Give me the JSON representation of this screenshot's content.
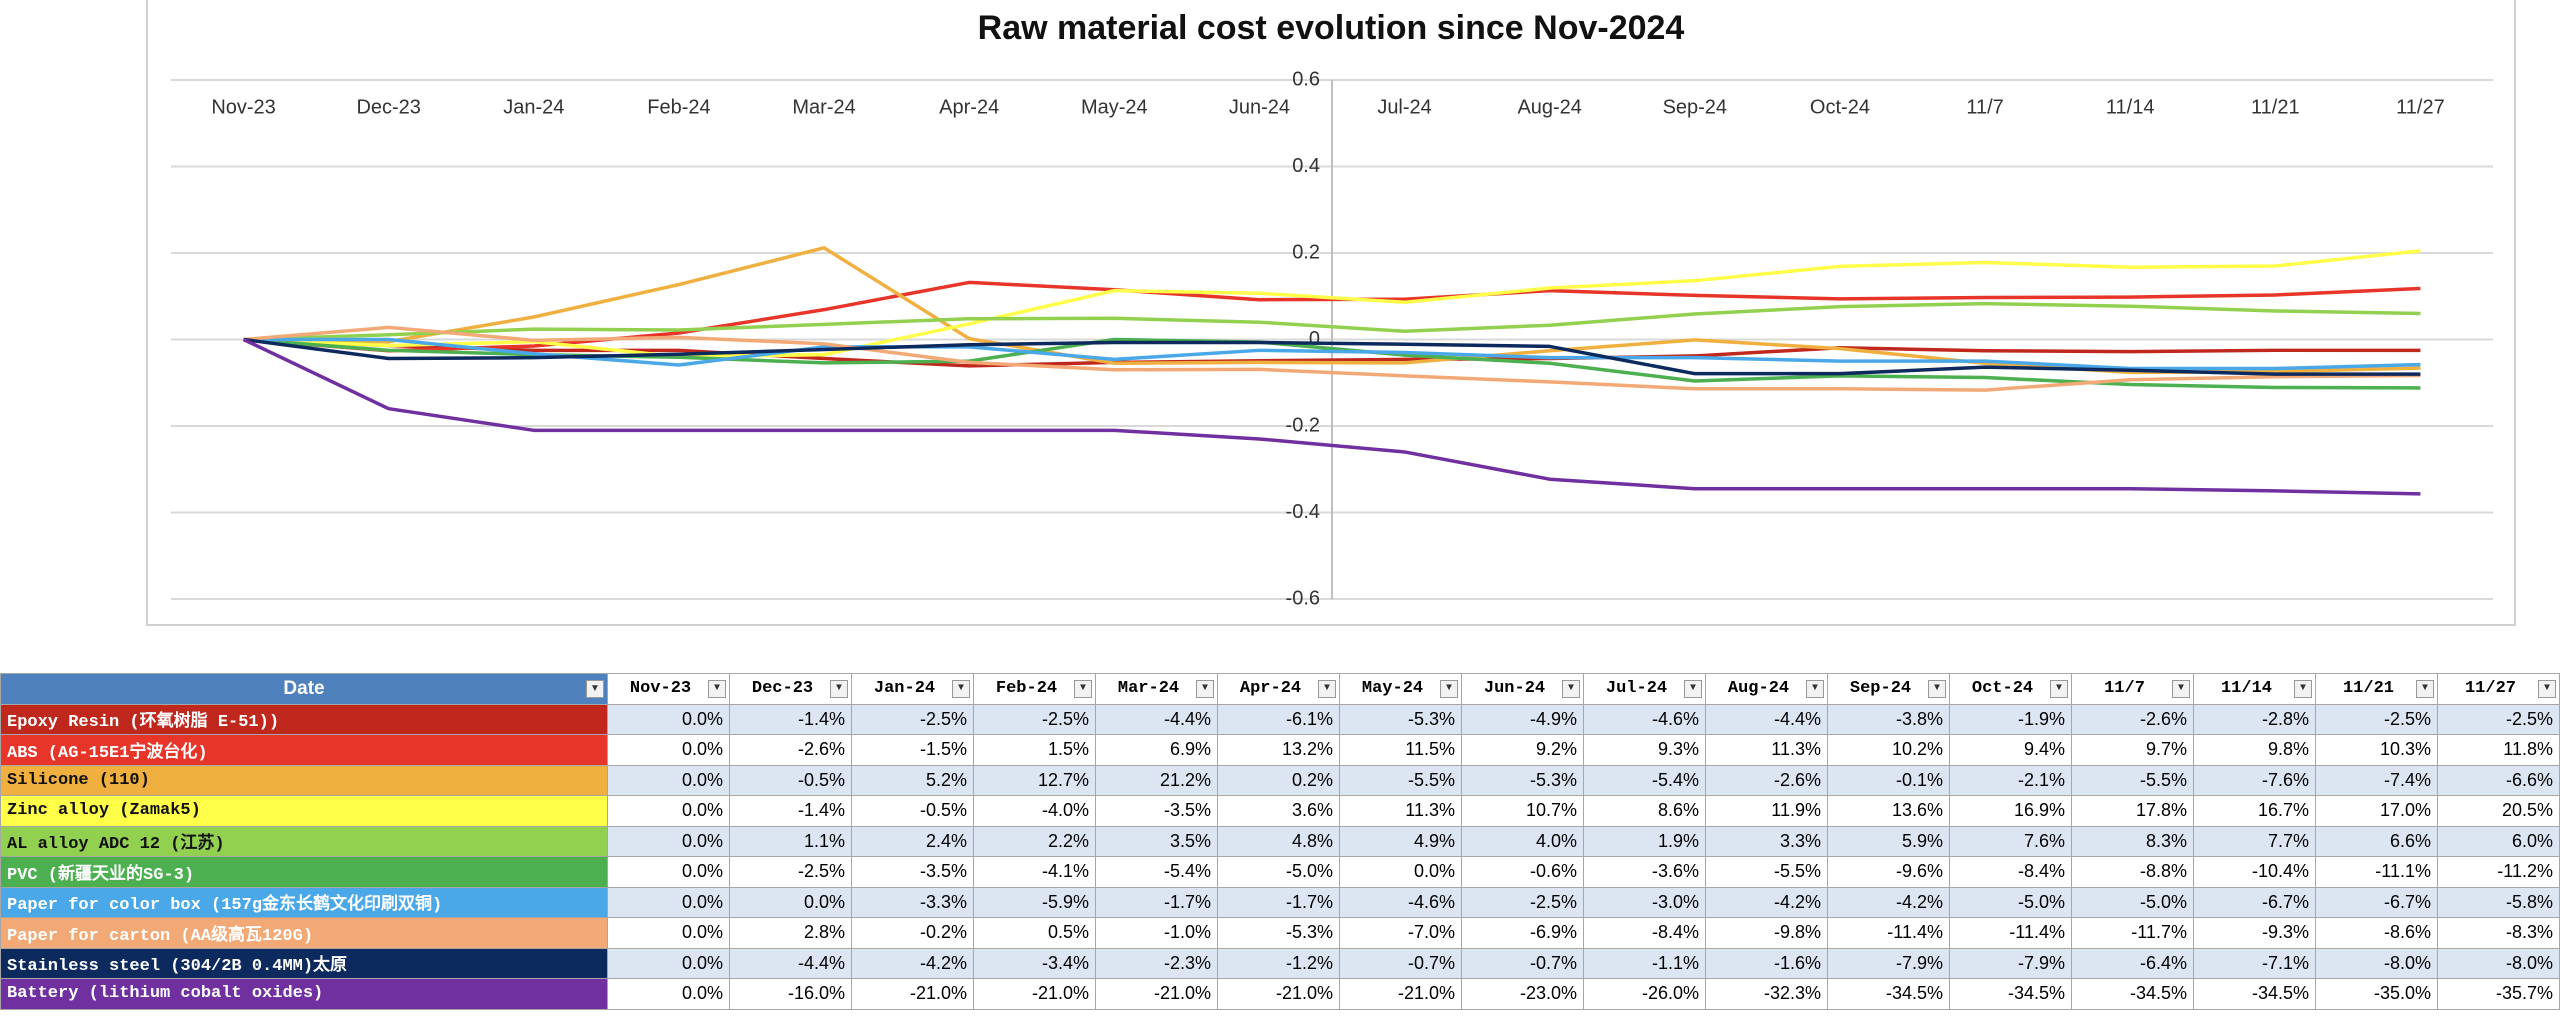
{
  "chart_data": {
    "type": "line",
    "title": "Raw material cost evolution since Nov-2024",
    "categories": [
      "Nov-23",
      "Dec-23",
      "Jan-24",
      "Feb-24",
      "Mar-24",
      "Apr-24",
      "May-24",
      "Jun-24",
      "Jul-24",
      "Aug-24",
      "Sep-24",
      "Oct-24",
      "11/7",
      "11/14",
      "11/21",
      "11/27"
    ],
    "ylim": [
      -0.6,
      0.6
    ],
    "yticks": [
      -0.6,
      -0.4,
      -0.2,
      0,
      0.2,
      0.4,
      0.6
    ],
    "grid": true,
    "series": [
      {
        "name": "Epoxy Resin (环氧树脂 E-51))",
        "color": "#c0281e",
        "values": [
          0,
          -0.014,
          -0.025,
          -0.025,
          -0.044,
          -0.061,
          -0.053,
          -0.049,
          -0.046,
          -0.044,
          -0.038,
          -0.019,
          -0.026,
          -0.028,
          -0.025,
          -0.025
        ],
        "value_labels": [
          "0.0%",
          "-1.4%",
          "-2.5%",
          "-2.5%",
          "-4.4%",
          "-6.1%",
          "-5.3%",
          "-4.9%",
          "-4.6%",
          "-4.4%",
          "-3.8%",
          "-1.9%",
          "-2.6%",
          "-2.8%",
          "-2.5%",
          "-2.5%"
        ]
      },
      {
        "name": "ABS (AG-15E1宁波台化)",
        "color": "#e8352a",
        "values": [
          0,
          -0.026,
          -0.015,
          0.015,
          0.069,
          0.132,
          0.115,
          0.092,
          0.093,
          0.113,
          0.102,
          0.094,
          0.097,
          0.098,
          0.103,
          0.118
        ],
        "value_labels": [
          "0.0%",
          "-2.6%",
          "-1.5%",
          "1.5%",
          "6.9%",
          "13.2%",
          "11.5%",
          "9.2%",
          "9.3%",
          "11.3%",
          "10.2%",
          "9.4%",
          "9.7%",
          "9.8%",
          "10.3%",
          "11.8%"
        ]
      },
      {
        "name": "Silicone (110)",
        "color": "#f0b040",
        "values": [
          0,
          -0.005,
          0.052,
          0.127,
          0.212,
          0.002,
          -0.055,
          -0.053,
          -0.054,
          -0.026,
          -0.001,
          -0.021,
          -0.055,
          -0.076,
          -0.074,
          -0.066
        ],
        "value_labels": [
          "0.0%",
          "-0.5%",
          "5.2%",
          "12.7%",
          "21.2%",
          "0.2%",
          "-5.5%",
          "-5.3%",
          "-5.4%",
          "-2.6%",
          "-0.1%",
          "-2.1%",
          "-5.5%",
          "-7.6%",
          "-7.4%",
          "-6.6%"
        ]
      },
      {
        "name": "Zinc alloy (Zamak5)",
        "color": "#ffff4a",
        "values": [
          0,
          -0.014,
          -0.005,
          -0.04,
          -0.035,
          0.036,
          0.113,
          0.107,
          0.086,
          0.119,
          0.136,
          0.169,
          0.178,
          0.167,
          0.17,
          0.205
        ],
        "value_labels": [
          "0.0%",
          "-1.4%",
          "-0.5%",
          "-4.0%",
          "-3.5%",
          "3.6%",
          "11.3%",
          "10.7%",
          "8.6%",
          "11.9%",
          "13.6%",
          "16.9%",
          "17.8%",
          "16.7%",
          "17.0%",
          "20.5%"
        ]
      },
      {
        "name": "AL alloy ADC 12 (江苏)",
        "color": "#92d050",
        "values": [
          0,
          0.011,
          0.024,
          0.022,
          0.035,
          0.048,
          0.049,
          0.04,
          0.019,
          0.033,
          0.059,
          0.076,
          0.083,
          0.077,
          0.066,
          0.06
        ],
        "value_labels": [
          "0.0%",
          "1.1%",
          "2.4%",
          "2.2%",
          "3.5%",
          "4.8%",
          "4.9%",
          "4.0%",
          "1.9%",
          "3.3%",
          "5.9%",
          "7.6%",
          "8.3%",
          "7.7%",
          "6.6%",
          "6.0%"
        ]
      },
      {
        "name": "PVC (新疆天业的SG-3)",
        "color": "#4caf50",
        "values": [
          0,
          -0.025,
          -0.035,
          -0.041,
          -0.054,
          -0.05,
          0,
          -0.006,
          -0.036,
          -0.055,
          -0.096,
          -0.084,
          -0.088,
          -0.104,
          -0.111,
          -0.112
        ],
        "value_labels": [
          "0.0%",
          "-2.5%",
          "-3.5%",
          "-4.1%",
          "-5.4%",
          "-5.0%",
          "0.0%",
          "-0.6%",
          "-3.6%",
          "-5.5%",
          "-9.6%",
          "-8.4%",
          "-8.8%",
          "-10.4%",
          "-11.1%",
          "-11.2%"
        ]
      },
      {
        "name": "Paper for color box (157g金东长鹤文化印刷双铜)",
        "color": "#4aa8e8",
        "values": [
          0,
          0,
          -0.033,
          -0.059,
          -0.017,
          -0.017,
          -0.046,
          -0.025,
          -0.03,
          -0.042,
          -0.042,
          -0.05,
          -0.05,
          -0.067,
          -0.067,
          -0.058
        ],
        "value_labels": [
          "0.0%",
          "0.0%",
          "-3.3%",
          "-5.9%",
          "-1.7%",
          "-1.7%",
          "-4.6%",
          "-2.5%",
          "-3.0%",
          "-4.2%",
          "-4.2%",
          "-5.0%",
          "-5.0%",
          "-6.7%",
          "-6.7%",
          "-5.8%"
        ]
      },
      {
        "name": "Paper for carton (AA级高瓦120G)",
        "color": "#f2a976",
        "values": [
          0,
          0.028,
          -0.002,
          0.005,
          -0.01,
          -0.053,
          -0.07,
          -0.069,
          -0.084,
          -0.098,
          -0.114,
          -0.114,
          -0.117,
          -0.093,
          -0.086,
          -0.083
        ],
        "value_labels": [
          "0.0%",
          "2.8%",
          "-0.2%",
          "0.5%",
          "-1.0%",
          "-5.3%",
          "-7.0%",
          "-6.9%",
          "-8.4%",
          "-9.8%",
          "-11.4%",
          "-11.4%",
          "-11.7%",
          "-9.3%",
          "-8.6%",
          "-8.3%"
        ]
      },
      {
        "name": "Stainless steel (304/2B 0.4MM)太原",
        "color": "#0d2a5e",
        "values": [
          0,
          -0.044,
          -0.042,
          -0.034,
          -0.023,
          -0.012,
          -0.007,
          -0.007,
          -0.011,
          -0.016,
          -0.079,
          -0.079,
          -0.064,
          -0.071,
          -0.08,
          -0.08
        ],
        "value_labels": [
          "0.0%",
          "-4.4%",
          "-4.2%",
          "-3.4%",
          "-2.3%",
          "-1.2%",
          "-0.7%",
          "-0.7%",
          "-1.1%",
          "-1.6%",
          "-7.9%",
          "-7.9%",
          "-6.4%",
          "-7.1%",
          "-8.0%",
          "-8.0%"
        ]
      },
      {
        "name": "Battery (lithium cobalt oxides)",
        "color": "#7030a0",
        "values": [
          0,
          -0.16,
          -0.21,
          -0.21,
          -0.21,
          -0.21,
          -0.21,
          -0.23,
          -0.26,
          -0.323,
          -0.345,
          -0.345,
          -0.345,
          -0.345,
          -0.35,
          -0.357
        ],
        "value_labels": [
          "0.0%",
          "-16.0%",
          "-21.0%",
          "-21.0%",
          "-21.0%",
          "-21.0%",
          "-21.0%",
          "-23.0%",
          "-26.0%",
          "-32.3%",
          "-34.5%",
          "-34.5%",
          "-34.5%",
          "-34.5%",
          "-35.0%",
          "-35.7%"
        ]
      }
    ]
  },
  "table": {
    "header": "Date"
  }
}
